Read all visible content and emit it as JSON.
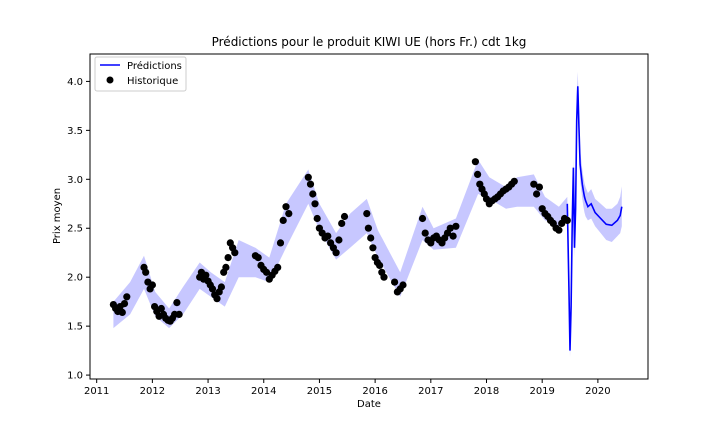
{
  "chart_data": {
    "type": "line",
    "title": "Prédictions pour le produit KIWI UE (hors Fr.) cdt 1kg",
    "xlabel": "Date",
    "ylabel": "Prix moyen",
    "xlim": [
      2010.88,
      2020.9
    ],
    "ylim": [
      0.96,
      4.28
    ],
    "x_ticks": [
      "2011",
      "2012",
      "2013",
      "2014",
      "2015",
      "2016",
      "2017",
      "2018",
      "2019",
      "2020"
    ],
    "y_ticks": [
      "1.0",
      "1.5",
      "2.0",
      "2.5",
      "3.0",
      "3.5",
      "4.0"
    ],
    "grid": false,
    "legend": {
      "position": "top-left",
      "entries": [
        {
          "label": "Prédictions",
          "marker": "line",
          "color": "#0000ff"
        },
        {
          "label": "Historique",
          "marker": "dot",
          "color": "#000000"
        }
      ]
    },
    "colors": {
      "prediction": "#0000ff",
      "band": "#0000ff",
      "history": "#000000"
    },
    "series": [
      {
        "name": "Prédictions",
        "kind": "line",
        "x": [
          2019.45,
          2019.48,
          2019.5,
          2019.52,
          2019.54,
          2019.56,
          2019.58,
          2019.6,
          2019.62,
          2019.64,
          2019.66,
          2019.68,
          2019.7,
          2019.72,
          2019.74,
          2019.76,
          2019.78,
          2019.82,
          2019.88,
          2019.95,
          2020.05,
          2020.15,
          2020.25,
          2020.35,
          2020.4,
          2020.43
        ],
        "y": [
          2.75,
          1.9,
          1.25,
          1.7,
          2.6,
          3.12,
          2.3,
          2.7,
          3.6,
          3.95,
          3.55,
          3.15,
          3.05,
          2.95,
          2.88,
          2.82,
          2.78,
          2.72,
          2.75,
          2.66,
          2.6,
          2.54,
          2.53,
          2.58,
          2.63,
          2.72
        ]
      },
      {
        "name": "",
        "kind": "band",
        "x": [
          2011.3,
          2011.6,
          2011.85,
          2012.05,
          2012.3,
          2012.55,
          2012.85,
          2013.05,
          2013.3,
          2013.55,
          2013.85,
          2014.1,
          2014.4,
          2014.8,
          2015.0,
          2015.3,
          2015.55,
          2015.85,
          2016.05,
          2016.45,
          2016.85,
          2017.05,
          2017.45,
          2017.85,
          2018.05,
          2018.35,
          2018.55,
          2018.85,
          2019.05,
          2019.3,
          2019.45,
          2019.48,
          2019.5,
          2019.52,
          2019.54,
          2019.56,
          2019.58,
          2019.6,
          2019.62,
          2019.64,
          2019.66,
          2019.68,
          2019.7,
          2019.72,
          2019.74,
          2019.76,
          2019.78,
          2019.82,
          2019.88,
          2019.95,
          2020.05,
          2020.15,
          2020.25,
          2020.35,
          2020.4,
          2020.43
        ],
        "upper": [
          1.75,
          1.95,
          2.22,
          1.85,
          1.68,
          1.9,
          2.15,
          2.05,
          1.95,
          2.38,
          2.3,
          2.2,
          2.75,
          3.1,
          2.75,
          2.45,
          2.65,
          2.8,
          2.48,
          2.05,
          2.72,
          2.5,
          2.6,
          3.2,
          3.02,
          2.92,
          3.02,
          3.05,
          2.82,
          2.72,
          2.82,
          2.0,
          1.35,
          1.8,
          2.7,
          3.22,
          2.4,
          2.85,
          3.85,
          4.1,
          3.72,
          3.3,
          3.2,
          3.1,
          3.02,
          2.96,
          2.92,
          2.86,
          2.9,
          2.8,
          2.75,
          2.7,
          2.7,
          2.75,
          2.82,
          2.93
        ],
        "lower": [
          1.48,
          1.62,
          1.88,
          1.6,
          1.48,
          1.62,
          1.88,
          1.8,
          1.7,
          2.0,
          2.0,
          1.95,
          2.3,
          2.75,
          2.48,
          2.18,
          2.3,
          2.45,
          2.2,
          1.8,
          2.38,
          2.28,
          2.3,
          2.85,
          2.8,
          2.7,
          2.72,
          2.72,
          2.58,
          2.52,
          2.62,
          1.75,
          1.18,
          1.55,
          2.45,
          2.95,
          2.2,
          2.55,
          3.35,
          3.8,
          3.4,
          3.0,
          2.9,
          2.8,
          2.72,
          2.66,
          2.62,
          2.58,
          2.6,
          2.52,
          2.45,
          2.38,
          2.36,
          2.42,
          2.45,
          2.52
        ]
      },
      {
        "name": "Historique",
        "kind": "scatter",
        "x": [
          2011.3,
          2011.34,
          2011.38,
          2011.42,
          2011.46,
          2011.5,
          2011.54,
          2011.85,
          2011.88,
          2011.92,
          2011.96,
          2012.0,
          2012.04,
          2012.08,
          2012.12,
          2012.16,
          2012.2,
          2012.24,
          2012.28,
          2012.32,
          2012.36,
          2012.4,
          2012.44,
          2012.48,
          2012.85,
          2012.88,
          2012.92,
          2012.96,
          2013.0,
          2013.04,
          2013.08,
          2013.12,
          2013.16,
          2013.2,
          2013.24,
          2013.28,
          2013.32,
          2013.36,
          2013.4,
          2013.44,
          2013.48,
          2013.85,
          2013.9,
          2013.95,
          2014.0,
          2014.05,
          2014.1,
          2014.15,
          2014.2,
          2014.25,
          2014.3,
          2014.35,
          2014.4,
          2014.45,
          2014.8,
          2014.84,
          2014.88,
          2014.92,
          2014.96,
          2015.0,
          2015.05,
          2015.1,
          2015.15,
          2015.2,
          2015.25,
          2015.3,
          2015.35,
          2015.4,
          2015.45,
          2015.85,
          2015.88,
          2015.92,
          2015.96,
          2016.0,
          2016.04,
          2016.08,
          2016.12,
          2016.16,
          2016.35,
          2016.4,
          2016.45,
          2016.5,
          2016.85,
          2016.9,
          2016.95,
          2017.0,
          2017.05,
          2017.1,
          2017.15,
          2017.2,
          2017.25,
          2017.3,
          2017.35,
          2017.4,
          2017.45,
          2017.8,
          2017.84,
          2017.88,
          2017.92,
          2017.96,
          2018.0,
          2018.05,
          2018.1,
          2018.15,
          2018.2,
          2018.25,
          2018.3,
          2018.35,
          2018.4,
          2018.45,
          2018.5,
          2018.85,
          2018.9,
          2018.95,
          2019.0,
          2019.05,
          2019.1,
          2019.15,
          2019.2,
          2019.25,
          2019.3,
          2019.35,
          2019.4,
          2019.45
        ],
        "y": [
          1.72,
          1.68,
          1.65,
          1.7,
          1.64,
          1.73,
          1.8,
          2.1,
          2.05,
          1.95,
          1.88,
          1.92,
          1.7,
          1.65,
          1.6,
          1.68,
          1.62,
          1.58,
          1.56,
          1.55,
          1.58,
          1.62,
          1.74,
          1.62,
          2.0,
          2.05,
          1.98,
          2.02,
          1.96,
          1.92,
          1.88,
          1.82,
          1.78,
          1.85,
          1.9,
          2.05,
          2.1,
          2.2,
          2.35,
          2.3,
          2.25,
          2.22,
          2.2,
          2.12,
          2.08,
          2.05,
          1.98,
          2.02,
          2.06,
          2.1,
          2.35,
          2.58,
          2.72,
          2.65,
          3.02,
          2.95,
          2.85,
          2.75,
          2.6,
          2.5,
          2.45,
          2.4,
          2.42,
          2.35,
          2.3,
          2.25,
          2.38,
          2.55,
          2.62,
          2.65,
          2.5,
          2.4,
          2.3,
          2.2,
          2.15,
          2.12,
          2.05,
          2.0,
          1.95,
          1.85,
          1.88,
          1.92,
          2.6,
          2.45,
          2.38,
          2.35,
          2.4,
          2.42,
          2.38,
          2.35,
          2.4,
          2.45,
          2.5,
          2.42,
          2.52,
          3.18,
          3.05,
          2.95,
          2.9,
          2.85,
          2.8,
          2.75,
          2.78,
          2.8,
          2.82,
          2.85,
          2.88,
          2.9,
          2.92,
          2.95,
          2.98,
          2.95,
          2.85,
          2.92,
          2.7,
          2.65,
          2.62,
          2.58,
          2.55,
          2.5,
          2.48,
          2.55,
          2.6,
          2.58
        ]
      }
    ]
  }
}
